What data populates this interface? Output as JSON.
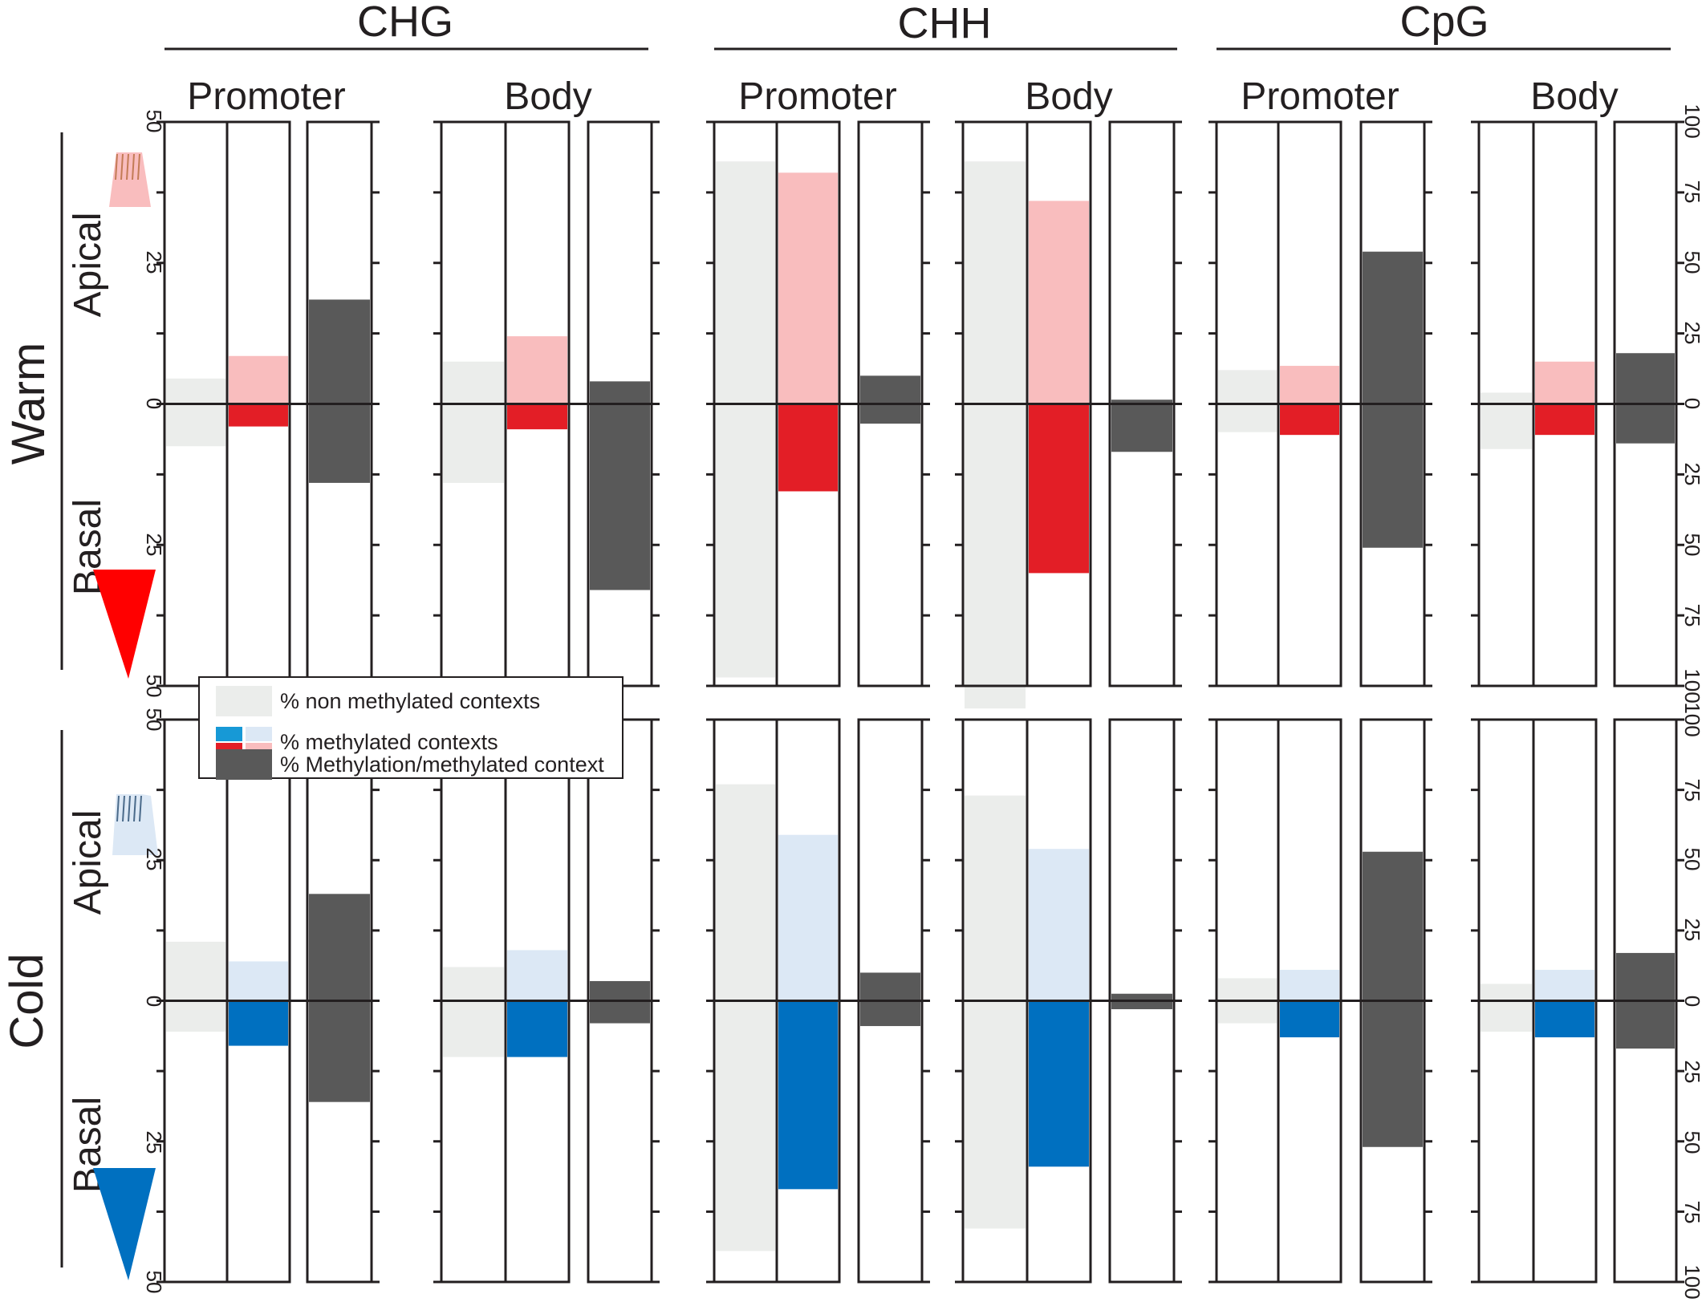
{
  "chart_data": {
    "type": "bar",
    "title": "",
    "groups": [
      {
        "label": "CHG",
        "sections": [
          "Promoter",
          "Body"
        ]
      },
      {
        "label": "CHH",
        "sections": [
          "Promoter",
          "Body"
        ]
      },
      {
        "label": "CpG",
        "sections": [
          "Promoter",
          "Body"
        ]
      }
    ],
    "row_labels": {
      "warm": "Warm",
      "cold": "Cold",
      "apical": "Apical",
      "basal": "Basal"
    },
    "axis_ticks": {
      "left_CHG": [
        "50",
        "25",
        "0",
        "25",
        "50"
      ],
      "right_CpG": [
        "100",
        "75",
        "50",
        "25",
        "0",
        "25",
        "50",
        "75",
        "100"
      ]
    },
    "ranges": {
      "CHG": 50,
      "CHH": 100,
      "CpG": 100
    },
    "colors": {
      "gray": "#ebedeb",
      "dark": "#595959",
      "warm_light": "#f9bdbe",
      "warm_dark": "#e31e26",
      "cold_light": "#dce8f5",
      "cold_dark": "#0070c0",
      "legend_cyan": "#1799d6",
      "warm_triangle": "#ff0000",
      "frame": "#231f20"
    },
    "series_names": [
      "% non methylated contexts",
      "% methylated contexts",
      "% Methylation/methylated context"
    ],
    "warm": {
      "CHG": {
        "Promoter": {
          "nonmeth": [
            4.5,
            7.5
          ],
          "meth": [
            8.5,
            4
          ],
          "ratio": [
            18.5,
            14
          ]
        },
        "Body": {
          "nonmeth": [
            7.5,
            14
          ],
          "meth": [
            12,
            4.5
          ],
          "ratio": [
            4,
            33
          ]
        }
      },
      "CHH": {
        "Promoter": {
          "nonmeth": [
            86,
            97
          ],
          "meth": [
            82,
            31
          ],
          "ratio": [
            10,
            7
          ]
        },
        "Body": {
          "nonmeth": [
            86,
            108
          ],
          "meth": [
            72,
            60
          ],
          "ratio": [
            1.5,
            17
          ]
        }
      },
      "CpG": {
        "Promoter": {
          "nonmeth": [
            12,
            10
          ],
          "meth": [
            13.5,
            11
          ],
          "ratio": [
            54,
            51
          ]
        },
        "Body": {
          "nonmeth": [
            4,
            16
          ],
          "meth": [
            15,
            11
          ],
          "ratio": [
            18,
            14
          ]
        }
      }
    },
    "cold": {
      "CHG": {
        "Promoter": {
          "nonmeth": [
            10.5,
            5.5
          ],
          "meth": [
            7,
            8
          ],
          "ratio": [
            19,
            18
          ]
        },
        "Body": {
          "nonmeth": [
            6,
            10
          ],
          "meth": [
            9,
            10
          ],
          "ratio": [
            3.5,
            4
          ]
        }
      },
      "CHH": {
        "Promoter": {
          "nonmeth": [
            77,
            89
          ],
          "meth": [
            59,
            67
          ],
          "ratio": [
            10,
            9
          ]
        },
        "Body": {
          "nonmeth": [
            73,
            81
          ],
          "meth": [
            54,
            59
          ],
          "ratio": [
            2.5,
            3
          ]
        }
      },
      "CpG": {
        "Promoter": {
          "nonmeth": [
            8,
            8
          ],
          "meth": [
            11,
            13
          ],
          "ratio": [
            53,
            52
          ]
        },
        "Body": {
          "nonmeth": [
            6,
            11
          ],
          "meth": [
            11,
            13
          ],
          "ratio": [
            17,
            17
          ]
        }
      }
    }
  }
}
